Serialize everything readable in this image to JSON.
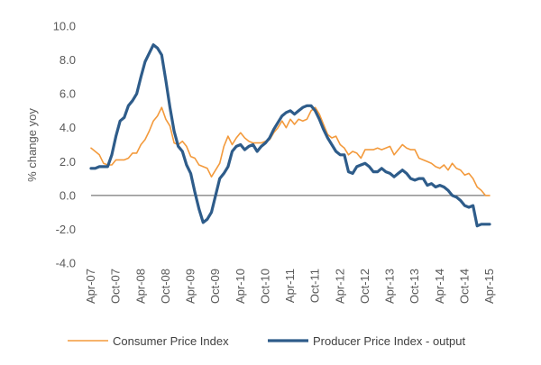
{
  "chart_data": {
    "type": "line",
    "title": "",
    "xlabel": "",
    "ylabel": "% change yoy",
    "ylim": [
      -4.0,
      10.0
    ],
    "yticks": [
      "10.0",
      "8.0",
      "6.0",
      "4.0",
      "2.0",
      "0.0",
      "-2.0",
      "-4.0"
    ],
    "ytick_values": [
      10,
      8,
      6,
      4,
      2,
      0,
      -2,
      -4
    ],
    "x_start": "Apr-07",
    "x_end": "Apr-15",
    "x_tick_labels": [
      "Apr-07",
      "Oct-07",
      "Apr-08",
      "Oct-08",
      "Apr-09",
      "Oct-09",
      "Apr-10",
      "Oct-10",
      "Apr-11",
      "Oct-11",
      "Apr-12",
      "Oct-12",
      "Apr-13",
      "Oct-13",
      "Apr-14",
      "Oct-14",
      "Apr-15"
    ],
    "x_tick_months": [
      0,
      6,
      12,
      18,
      24,
      30,
      36,
      42,
      48,
      54,
      60,
      66,
      72,
      78,
      84,
      90,
      96
    ],
    "legend_position": "bottom",
    "series": [
      {
        "name": "Consumer Price Index",
        "color": "#F39A3C",
        "month_index": [
          0,
          1,
          2,
          3,
          4,
          5,
          6,
          7,
          8,
          9,
          10,
          11,
          12,
          13,
          14,
          15,
          16,
          17,
          18,
          19,
          20,
          21,
          22,
          23,
          24,
          25,
          26,
          27,
          28,
          29,
          30,
          31,
          32,
          33,
          34,
          35,
          36,
          37,
          38,
          39,
          40,
          41,
          42,
          43,
          44,
          45,
          46,
          47,
          48,
          49,
          50,
          51,
          52,
          53,
          54,
          55,
          56,
          57,
          58,
          59,
          60,
          61,
          62,
          63,
          64,
          65,
          66,
          67,
          68,
          69,
          70,
          71,
          72,
          73,
          74,
          75,
          76,
          77,
          78,
          79,
          80,
          81,
          82,
          83,
          84,
          85,
          86,
          87,
          88,
          89,
          90,
          91,
          92,
          93,
          94,
          95,
          96
        ],
        "values": [
          2.8,
          2.6,
          2.4,
          1.9,
          1.8,
          1.8,
          2.1,
          2.1,
          2.1,
          2.2,
          2.5,
          2.5,
          3.0,
          3.3,
          3.8,
          4.4,
          4.7,
          5.2,
          4.5,
          4.1,
          3.1,
          3.0,
          3.2,
          2.9,
          2.3,
          2.2,
          1.8,
          1.7,
          1.6,
          1.1,
          1.5,
          1.9,
          2.9,
          3.5,
          3.0,
          3.4,
          3.7,
          3.4,
          3.2,
          3.1,
          3.1,
          3.1,
          3.2,
          3.3,
          3.7,
          4.0,
          4.4,
          4.0,
          4.5,
          4.2,
          4.5,
          4.4,
          4.5,
          5.0,
          5.2,
          4.8,
          4.2,
          3.6,
          3.4,
          3.5,
          3.0,
          2.8,
          2.4,
          2.6,
          2.5,
          2.2,
          2.7,
          2.7,
          2.7,
          2.8,
          2.7,
          2.8,
          2.9,
          2.4,
          2.7,
          3.0,
          2.8,
          2.7,
          2.7,
          2.2,
          2.1,
          2.0,
          1.9,
          1.7,
          1.6,
          1.8,
          1.5,
          1.9,
          1.6,
          1.5,
          1.2,
          1.3,
          1.0,
          0.5,
          0.3,
          0.0,
          0.0
        ]
      },
      {
        "name": "Producer Price Index - output",
        "color": "#2E5C8A",
        "month_index": [
          0,
          1,
          2,
          3,
          4,
          5,
          6,
          7,
          8,
          9,
          10,
          11,
          12,
          13,
          14,
          15,
          16,
          17,
          18,
          19,
          20,
          21,
          22,
          23,
          24,
          25,
          26,
          27,
          28,
          29,
          30,
          31,
          32,
          33,
          34,
          35,
          36,
          37,
          38,
          39,
          40,
          41,
          42,
          43,
          44,
          45,
          46,
          47,
          48,
          49,
          50,
          51,
          52,
          53,
          54,
          55,
          56,
          57,
          58,
          59,
          60,
          61,
          62,
          63,
          64,
          65,
          66,
          67,
          68,
          69,
          70,
          71,
          72,
          73,
          74,
          75,
          76,
          77,
          78,
          79,
          80,
          81,
          82,
          83,
          84,
          85,
          86,
          87,
          88,
          89,
          90,
          91,
          92,
          93,
          94,
          95,
          96
        ],
        "values": [
          1.6,
          1.6,
          1.7,
          1.7,
          1.7,
          2.4,
          3.5,
          4.4,
          4.6,
          5.3,
          5.6,
          6.0,
          7.0,
          7.9,
          8.4,
          8.9,
          8.7,
          8.3,
          6.8,
          5.2,
          3.8,
          2.9,
          2.6,
          1.8,
          1.3,
          0.2,
          -0.8,
          -1.6,
          -1.4,
          -1.0,
          0.0,
          1.0,
          1.3,
          1.7,
          2.6,
          2.9,
          3.0,
          2.7,
          2.9,
          3.0,
          2.6,
          2.9,
          3.1,
          3.4,
          3.9,
          4.3,
          4.7,
          4.9,
          5.0,
          4.8,
          5.0,
          5.2,
          5.3,
          5.3,
          5.0,
          4.5,
          3.9,
          3.4,
          3.0,
          2.6,
          2.4,
          2.4,
          1.4,
          1.3,
          1.7,
          1.8,
          1.9,
          1.7,
          1.4,
          1.4,
          1.6,
          1.4,
          1.3,
          1.1,
          1.3,
          1.5,
          1.3,
          1.0,
          0.9,
          1.0,
          1.0,
          0.6,
          0.7,
          0.5,
          0.6,
          0.5,
          0.3,
          0.0,
          -0.1,
          -0.3,
          -0.6,
          -0.7,
          -0.6,
          -1.8,
          -1.7,
          -1.7,
          -1.7
        ]
      }
    ]
  }
}
